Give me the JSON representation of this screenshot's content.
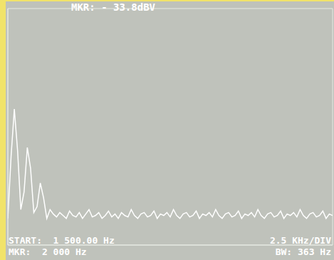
{
  "chart_data": {
    "type": "line",
    "title": "MKR: - 33.8dBV",
    "annotations": [
      "START:  1 500.00 Hz",
      "2.5 KHz/DIV",
      "MKR:  2 000 Hz",
      "BW: 363 Hz"
    ],
    "x": [
      1500,
      1750,
      2000,
      2250,
      2500,
      2750,
      3000,
      3250,
      3500,
      3750,
      4000,
      4250,
      4500,
      4750,
      5000,
      5250,
      5500,
      5750,
      6000,
      6250,
      6500,
      6750,
      7000,
      7250,
      7500,
      7750,
      8000,
      8250,
      8500,
      8750,
      9000,
      9250,
      9500,
      9750,
      10000,
      10250,
      10500,
      10750,
      11000,
      11250,
      11500,
      11750,
      12000,
      12250,
      12500,
      12750,
      13000,
      13250,
      13500,
      13750,
      14000,
      14250,
      14500,
      14750,
      15000,
      15250,
      15500,
      15750,
      16000,
      16250,
      16500,
      16750,
      17000,
      17250,
      17500,
      17750,
      18000,
      18250,
      18500,
      18750,
      19000,
      19250,
      19500,
      19750,
      20000,
      20250,
      20500,
      20750,
      21000,
      21250,
      21500,
      21750,
      22000,
      22250,
      22500,
      22750,
      23000,
      23250,
      23500,
      23750,
      24000,
      24250,
      24500,
      24750,
      25000,
      25250,
      25500,
      25750,
      26000,
      26250,
      26500
    ],
    "values": [
      0.9,
      3.0,
      4.6,
      3.2,
      1.2,
      1.8,
      3.3,
      2.6,
      1.1,
      1.3,
      2.1,
      1.6,
      0.9,
      1.2,
      1.05,
      0.95,
      1.1,
      1.0,
      0.9,
      1.15,
      1.0,
      0.95,
      1.1,
      0.9,
      1.05,
      1.2,
      0.95,
      1.0,
      1.1,
      0.9,
      1.0,
      1.15,
      0.95,
      1.05,
      0.9,
      1.1,
      1.0,
      0.95,
      1.2,
      1.0,
      0.9,
      1.05,
      1.1,
      0.95,
      1.0,
      1.15,
      0.9,
      1.05,
      1.0,
      1.1,
      0.95,
      1.2,
      1.0,
      0.9,
      1.05,
      1.1,
      0.95,
      1.0,
      1.15,
      0.9,
      1.05,
      1.0,
      1.1,
      0.95,
      1.2,
      1.0,
      0.9,
      1.05,
      1.1,
      0.95,
      1.0,
      1.15,
      0.9,
      1.05,
      1.0,
      1.1,
      0.95,
      1.2,
      1.0,
      0.9,
      1.05,
      1.1,
      0.95,
      1.0,
      1.15,
      0.9,
      1.05,
      1.0,
      1.1,
      0.95,
      1.2,
      1.0,
      0.9,
      1.05,
      1.1,
      0.95,
      1.0,
      1.15,
      0.9,
      1.05,
      1.0
    ],
    "xlim": [
      1500,
      26500
    ],
    "xticks": [
      1500,
      4000,
      6500,
      9000,
      11500,
      14000,
      16500,
      19000,
      21500,
      24000,
      26500
    ],
    "ylim": [
      0,
      8
    ],
    "yticks": [
      0,
      1,
      2,
      3,
      4,
      5,
      6,
      7,
      8
    ],
    "color": "#ffffff",
    "grid": true,
    "tick_labels": false
  }
}
